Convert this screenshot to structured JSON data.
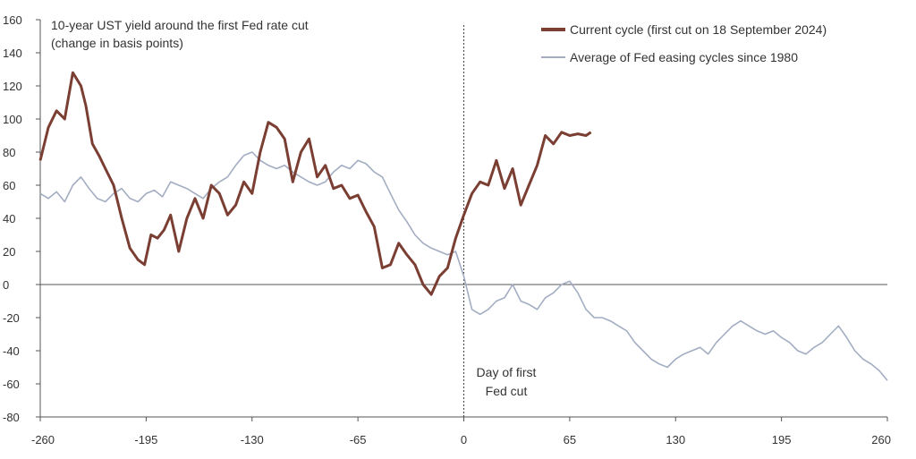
{
  "chart_data": {
    "type": "line",
    "title": "",
    "annotation_title": [
      "10-year UST yield around the first Fed rate cut",
      "(change in basis points)"
    ],
    "vline_label": [
      "Day of first",
      "Fed cut"
    ],
    "xlabel": "",
    "ylabel": "",
    "xlim": [
      -260,
      260
    ],
    "ylim": [
      -80,
      160
    ],
    "x_ticks": [
      -260,
      -195,
      -130,
      -65,
      0,
      65,
      130,
      195,
      260
    ],
    "y_ticks": [
      160,
      140,
      120,
      100,
      80,
      60,
      40,
      20,
      0,
      -20,
      -40,
      -60,
      -80
    ],
    "legend_position": "top-right",
    "grid": false,
    "series": [
      {
        "name": "Current cycle (first cut on 18 September 2024)",
        "color": "#7a3e33",
        "x": [
          -260,
          -255,
          -250,
          -245,
          -240,
          -235,
          -232,
          -228,
          -224,
          -220,
          -215,
          -210,
          -205,
          -200,
          -196,
          -192,
          -188,
          -184,
          -180,
          -175,
          -170,
          -165,
          -160,
          -155,
          -150,
          -145,
          -140,
          -135,
          -130,
          -125,
          -120,
          -115,
          -110,
          -105,
          -100,
          -95,
          -90,
          -85,
          -80,
          -75,
          -70,
          -65,
          -60,
          -55,
          -50,
          -45,
          -40,
          -35,
          -30,
          -25,
          -20,
          -15,
          -10,
          -5,
          0,
          5,
          10,
          15,
          20,
          25,
          30,
          35,
          40,
          45,
          50,
          55,
          60,
          65,
          70,
          75,
          78
        ],
        "y": [
          75,
          95,
          105,
          100,
          128,
          120,
          108,
          85,
          78,
          70,
          60,
          40,
          22,
          15,
          12,
          30,
          28,
          33,
          42,
          20,
          40,
          52,
          40,
          60,
          55,
          42,
          48,
          62,
          55,
          80,
          98,
          95,
          88,
          62,
          80,
          88,
          65,
          72,
          58,
          60,
          52,
          54,
          44,
          35,
          10,
          12,
          25,
          18,
          12,
          0,
          -6,
          5,
          10,
          28,
          42,
          55,
          62,
          60,
          75,
          58,
          70,
          48,
          60,
          72,
          90,
          85,
          92,
          90,
          91,
          90,
          92
        ]
      },
      {
        "name": "Average of Fed easing cycles since 1980",
        "color": "#a3adc2",
        "x": [
          -260,
          -255,
          -250,
          -245,
          -240,
          -235,
          -230,
          -225,
          -220,
          -215,
          -210,
          -205,
          -200,
          -195,
          -190,
          -185,
          -180,
          -175,
          -170,
          -165,
          -160,
          -155,
          -150,
          -145,
          -140,
          -135,
          -130,
          -125,
          -120,
          -115,
          -110,
          -105,
          -100,
          -95,
          -90,
          -85,
          -80,
          -75,
          -70,
          -65,
          -60,
          -55,
          -50,
          -45,
          -40,
          -35,
          -30,
          -25,
          -20,
          -15,
          -10,
          -5,
          0,
          5,
          10,
          15,
          20,
          25,
          30,
          35,
          40,
          45,
          50,
          55,
          60,
          65,
          70,
          75,
          80,
          85,
          90,
          95,
          100,
          105,
          110,
          115,
          120,
          125,
          130,
          135,
          140,
          145,
          150,
          155,
          160,
          165,
          170,
          175,
          180,
          185,
          190,
          195,
          200,
          205,
          210,
          215,
          220,
          225,
          230,
          235,
          240,
          245,
          250,
          255,
          260
        ],
        "y": [
          55,
          52,
          56,
          50,
          60,
          65,
          58,
          52,
          50,
          55,
          58,
          52,
          50,
          55,
          57,
          53,
          62,
          60,
          58,
          55,
          52,
          58,
          62,
          65,
          72,
          78,
          80,
          75,
          72,
          70,
          72,
          68,
          65,
          62,
          60,
          62,
          68,
          72,
          70,
          75,
          73,
          68,
          65,
          55,
          45,
          38,
          30,
          25,
          22,
          20,
          18,
          20,
          5,
          -15,
          -18,
          -15,
          -10,
          -8,
          0,
          -10,
          -12,
          -15,
          -8,
          -5,
          0,
          2,
          -5,
          -15,
          -20,
          -20,
          -22,
          -25,
          -28,
          -35,
          -40,
          -45,
          -48,
          -50,
          -45,
          -42,
          -40,
          -38,
          -42,
          -35,
          -30,
          -25,
          -22,
          -25,
          -28,
          -30,
          -28,
          -32,
          -35,
          -40,
          -42,
          -38,
          -35,
          -30,
          -25,
          -32,
          -40,
          -45,
          -48,
          -52,
          -58
        ]
      }
    ]
  }
}
